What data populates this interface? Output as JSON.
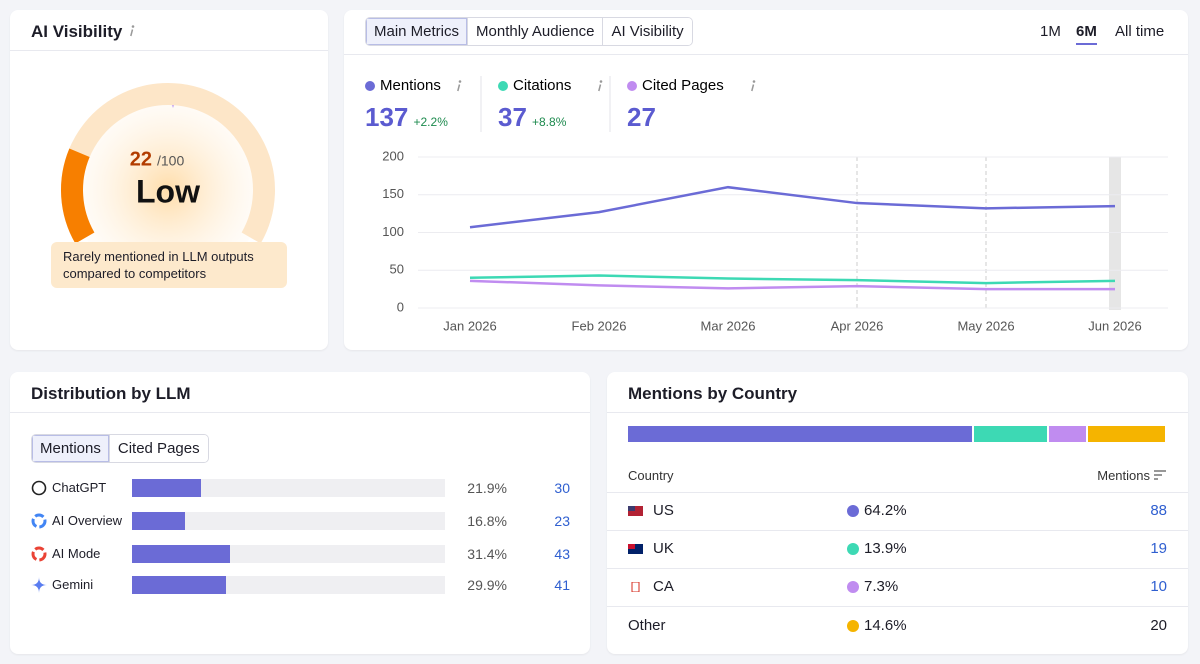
{
  "visibility": {
    "title": "AI Visibility",
    "score": 22,
    "max": {
      "value": 100,
      "label": "/100"
    },
    "level": "Low",
    "description": "Rarely mentioned in LLM outputs compared to competitors"
  },
  "metrics": {
    "tabs": [
      "Main Metrics",
      "Monthly Audience",
      "AI Visibility"
    ],
    "periods": [
      "1M",
      "6M",
      "All time"
    ],
    "chart": {
      "type": "line",
      "categories": [
        "Jan 2026",
        "Feb 2026",
        "Mar 2026",
        "Apr 2026",
        "May 2026",
        "Jun 2026"
      ],
      "series": [
        {
          "name": "Mentions",
          "color": "#6b6bd6",
          "total": 137,
          "change": "+2.2%",
          "values": [
            107,
            127,
            160,
            139,
            132,
            135
          ]
        },
        {
          "name": "Citations",
          "color": "#3dd9b4",
          "total": 37,
          "change": "+8.8%",
          "values": [
            40,
            43,
            39,
            37,
            33,
            36
          ]
        },
        {
          "name": "Cited Pages",
          "color": "#c08cf0",
          "total": 27,
          "values": [
            36,
            30,
            26,
            29,
            25,
            25
          ]
        }
      ],
      "ylim": [
        0,
        200
      ],
      "yticks": [
        0,
        50,
        100,
        150,
        200
      ],
      "grid": true
    }
  },
  "distribution": {
    "title": "Distribution by LLM",
    "tabs": [
      "Mentions",
      "Cited Pages"
    ],
    "color": "#6b6bd6",
    "rows": [
      {
        "name": "ChatGPT",
        "share": {
          "value": 21.9,
          "label": "21.9%"
        },
        "count": 30
      },
      {
        "name": "AI Overview",
        "share": {
          "value": 16.8,
          "label": "16.8%"
        },
        "count": 23
      },
      {
        "name": "AI Mode",
        "share": {
          "value": 31.4,
          "label": "31.4%"
        },
        "count": 43
      },
      {
        "name": "Gemini",
        "share": {
          "value": 29.9,
          "label": "29.9%"
        },
        "count": 41
      }
    ]
  },
  "countries": {
    "title": "Mentions by Country",
    "columns": [
      "Country",
      "Mentions"
    ],
    "rows": [
      {
        "name": "US",
        "color": "#6b6bd6",
        "share": {
          "value": 64.2,
          "label": "64.2%"
        },
        "count": 88
      },
      {
        "name": "UK",
        "color": "#3dd9b4",
        "share": {
          "value": 13.9,
          "label": "13.9%"
        },
        "count": 19
      },
      {
        "name": "CA",
        "color": "#c08cf0",
        "share": {
          "value": 7.3,
          "label": "7.3%"
        },
        "count": 10
      },
      {
        "name": "Other",
        "color": "#f5b400",
        "share": {
          "value": 14.6,
          "label": "14.6%"
        },
        "count": 20
      }
    ]
  }
}
